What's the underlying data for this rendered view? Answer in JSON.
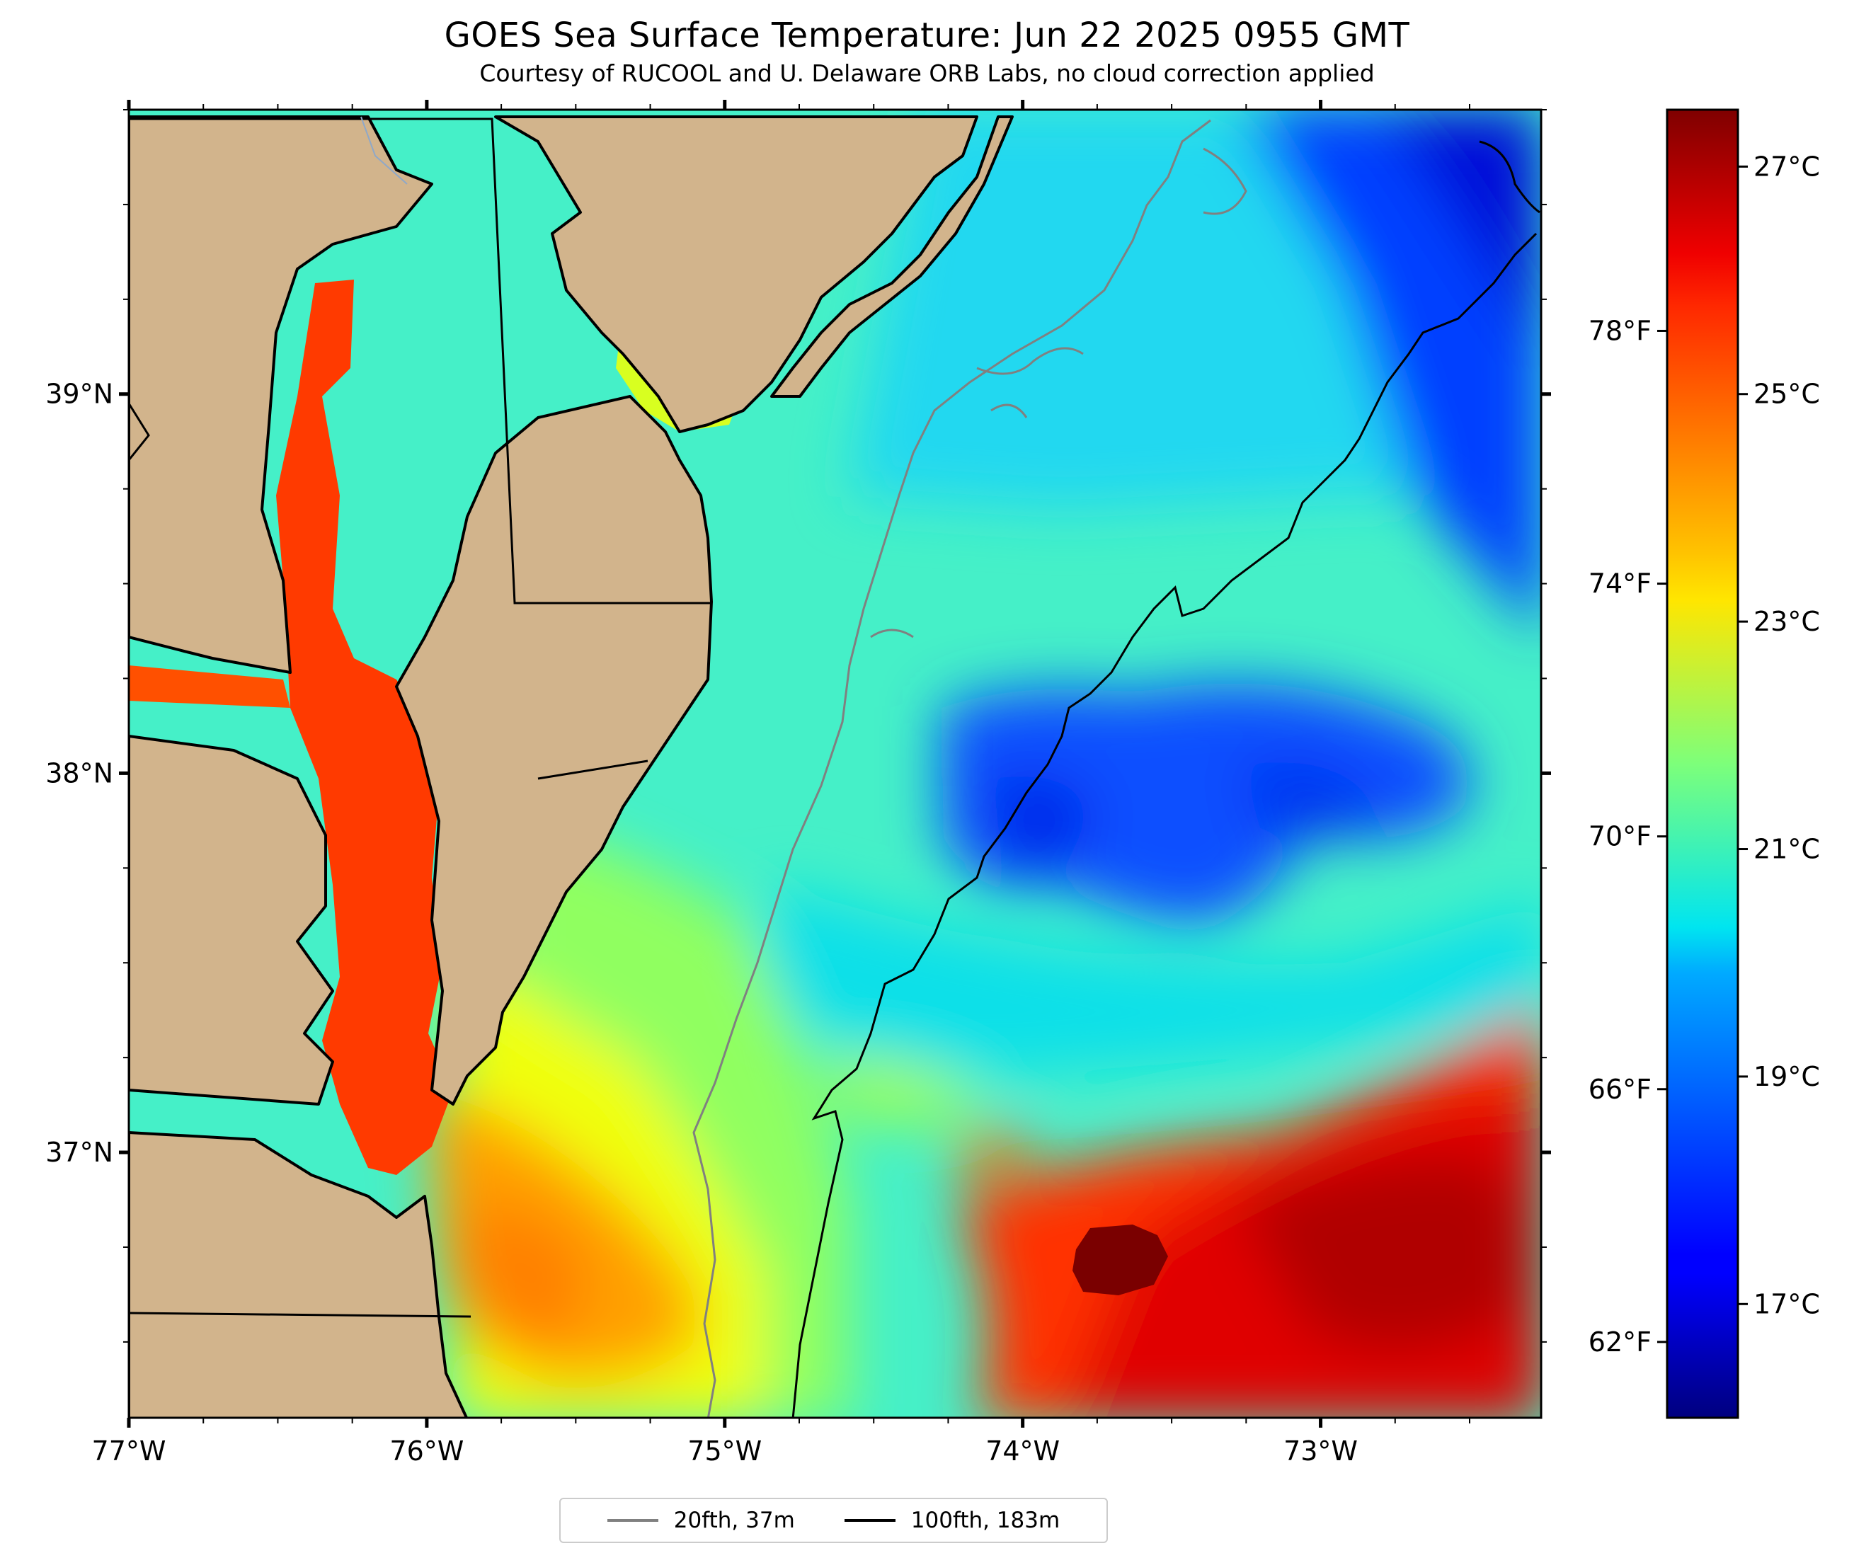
{
  "title": "GOES Sea Surface Temperature: Jun 22 2025 0955 GMT",
  "subtitle": "Courtesy of RUCOOL and U. Delaware ORB Labs, no cloud correction applied",
  "map": {
    "extent": {
      "lon_min": -77.0,
      "lon_max": -72.26,
      "lat_min": 36.3,
      "lat_max": 39.75
    },
    "x_ticks": [
      {
        "lon": -77,
        "label": "77°W"
      },
      {
        "lon": -76,
        "label": "76°W"
      },
      {
        "lon": -75,
        "label": "75°W"
      },
      {
        "lon": -74,
        "label": "74°W"
      },
      {
        "lon": -73,
        "label": "73°W"
      }
    ],
    "y_ticks": [
      {
        "lat": 39,
        "label": "39°N"
      },
      {
        "lat": 38,
        "label": "38°N"
      },
      {
        "lat": 37,
        "label": "37°N"
      }
    ],
    "fahrenheit_ticks": [
      {
        "f": 78,
        "label": "78°F"
      },
      {
        "f": 74,
        "label": "74°F"
      },
      {
        "f": 70,
        "label": "70°F"
      },
      {
        "f": 66,
        "label": "66°F"
      },
      {
        "f": 62,
        "label": "62°F"
      }
    ],
    "land_color": "#d2b48c",
    "colormap": "jet"
  },
  "colorbar": {
    "min_c": 16.0,
    "max_c": 27.5,
    "ticks": [
      {
        "c": 27,
        "label": "27°C"
      },
      {
        "c": 25,
        "label": "25°C"
      },
      {
        "c": 23,
        "label": "23°C"
      },
      {
        "c": 21,
        "label": "21°C"
      },
      {
        "c": 19,
        "label": "19°C"
      },
      {
        "c": 17,
        "label": "17°C"
      }
    ]
  },
  "legend": {
    "items": [
      {
        "label": "20fth, 37m",
        "color": "#808080"
      },
      {
        "label": "100fth, 183m",
        "color": "#000000"
      }
    ]
  }
}
